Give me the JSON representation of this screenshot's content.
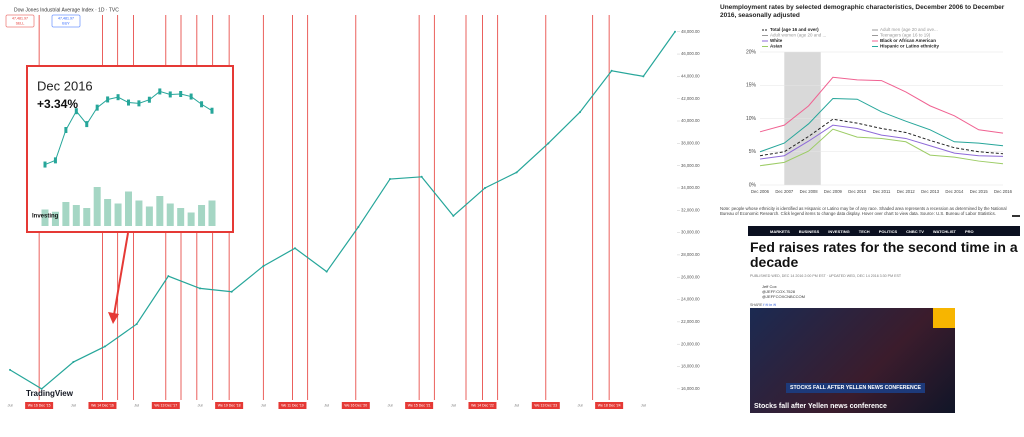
{
  "chart_data": [
    {
      "type": "line",
      "title": "Dow Jones Industrial Average Index · 1D · TVC",
      "sell_price": "47,481.97",
      "sell_label": "SELL",
      "buy_price": "47,481.97",
      "buy_label": "BUY",
      "brand": "TradingView",
      "categories": [
        "Jul",
        null,
        "Jul",
        null,
        "Jul",
        null,
        "Jul",
        null,
        "Jul",
        null,
        "Jul",
        null,
        "Jul",
        null,
        "Jul",
        null,
        "Jul",
        null,
        "Jul",
        null,
        "Jul",
        null
      ],
      "values": [
        17700,
        16000,
        18400,
        19800,
        21800,
        26100,
        25000,
        24700,
        27000,
        28600,
        26500,
        30500,
        34800,
        35000,
        31500,
        34000,
        35400,
        38000,
        40800,
        44500,
        44000,
        48000
      ],
      "color": "#26a69a",
      "ylim": [
        15000,
        49500
      ],
      "yticks": [
        {
          "value": 16000,
          "label": "16,000.00"
        },
        {
          "value": 18000,
          "label": "18,000.00"
        },
        {
          "value": 20000,
          "label": "20,000.00"
        },
        {
          "value": 22000,
          "label": "22,000.00"
        },
        {
          "value": 24000,
          "label": "24,000.00"
        },
        {
          "value": 26000,
          "label": "26,000.00"
        },
        {
          "value": 28000,
          "label": "28,000.00"
        },
        {
          "value": 30000,
          "label": "30,000.00"
        },
        {
          "value": 32000,
          "label": "32,000.00"
        },
        {
          "value": 34000,
          "label": "34,000.00"
        },
        {
          "value": 36000,
          "label": "36,000.00"
        },
        {
          "value": 38000,
          "label": "38,000.00"
        },
        {
          "value": 40000,
          "label": "40,000.00"
        },
        {
          "value": 42000,
          "label": "42,000.00"
        },
        {
          "value": 44000,
          "label": "44,000.00"
        },
        {
          "value": 46000,
          "label": "46,000.00"
        },
        {
          "value": 48000,
          "label": "48,000.00"
        }
      ],
      "event_color": "#e53935",
      "events": [
        {
          "at": 0.92,
          "label": "We 16 Dec '15"
        },
        {
          "at": 2.92,
          "label": "We 14 Dec '16"
        },
        {
          "at": 3.4,
          "label": null
        },
        {
          "at": 3.9,
          "label": null
        },
        {
          "at": 4.92,
          "label": "We 13 Dec '17"
        },
        {
          "at": 5.4,
          "label": null
        },
        {
          "at": 5.9,
          "label": null
        },
        {
          "at": 6.4,
          "label": null
        },
        {
          "at": 6.92,
          "label": "We 19 Dec '18"
        },
        {
          "at": 8.0,
          "label": null
        },
        {
          "at": 8.92,
          "label": "We 11 Dec '19"
        },
        {
          "at": 9.4,
          "label": null
        },
        {
          "at": 10.92,
          "label": "We 16 Dec '20"
        },
        {
          "at": 12.92,
          "label": "We 15 Dec '21"
        },
        {
          "at": 13.4,
          "label": null
        },
        {
          "at": 14.4,
          "label": null
        },
        {
          "at": 14.92,
          "label": "We 14 Dec '22"
        },
        {
          "at": 15.4,
          "label": null
        },
        {
          "at": 16.92,
          "label": "We 13 Dec '23"
        },
        {
          "at": 18.4,
          "label": null
        },
        {
          "at": 18.92,
          "label": "We 18 Dec '24"
        }
      ]
    },
    {
      "type": "line",
      "title": "Dec 2016",
      "subtitle": "+3.34%",
      "brand": "Investing",
      "values": [
        19170,
        19216,
        19550,
        19757,
        19615,
        19796,
        19886,
        19911,
        19852,
        19843,
        19883,
        19974,
        19941,
        19946,
        19918,
        19833,
        19762
      ],
      "volume": [
        110,
        95,
        160,
        140,
        120,
        260,
        180,
        150,
        230,
        170,
        130,
        200,
        150,
        120,
        90,
        140,
        170
      ],
      "color": "#26a69a",
      "volume_color": "#a5d6c4",
      "ylim": [
        19000,
        20100
      ],
      "volume_lim": [
        0,
        400
      ]
    },
    {
      "type": "line",
      "title": "Unemployment rates by selected demographic characteristics, December 2006 to December 2016, seasonally adjusted",
      "categories": [
        "Dec 2006",
        "Dec 2007",
        "Dec 2008",
        "Dec 2009",
        "Dec 2010",
        "Dec 2011",
        "Dec 2012",
        "Dec 2013",
        "Dec 2014",
        "Dec 2015",
        "Dec 2016"
      ],
      "ylim": [
        0,
        20
      ],
      "yticks": [
        {
          "value": 0,
          "label": "0%"
        },
        {
          "value": 5,
          "label": "5%"
        },
        {
          "value": 10,
          "label": "10%"
        },
        {
          "value": 15,
          "label": "15%"
        },
        {
          "value": 20,
          "label": "20%"
        }
      ],
      "grid": true,
      "recession": [
        1,
        2.5
      ],
      "series": [
        {
          "name": "Total (age 16 and over)",
          "color": "#222222",
          "dashed": true,
          "values": [
            4.4,
            5.0,
            7.3,
            9.9,
            9.3,
            8.5,
            7.9,
            6.7,
            5.6,
            5.0,
            4.7
          ]
        },
        {
          "name": "Adult men (age 20 and ove...",
          "color": "#999999",
          "hidden": true,
          "values": [
            null,
            null,
            null,
            null,
            null,
            null,
            null,
            null,
            null,
            null,
            null
          ]
        },
        {
          "name": "Adult women (age 20 and ...",
          "color": "#999999",
          "hidden": true,
          "values": [
            null,
            null,
            null,
            null,
            null,
            null,
            null,
            null,
            null,
            null,
            null
          ]
        },
        {
          "name": "Teenagers (age 16 to 19)",
          "color": "#999999",
          "hidden": true,
          "values": [
            null,
            null,
            null,
            null,
            null,
            null,
            null,
            null,
            null,
            null,
            null
          ]
        },
        {
          "name": "White",
          "color": "#8e6ad8",
          "values": [
            3.9,
            4.4,
            6.6,
            9.0,
            8.5,
            7.5,
            7.0,
            5.9,
            4.8,
            4.4,
            4.3
          ]
        },
        {
          "name": "Black or African American",
          "color": "#f06292",
          "values": [
            8.0,
            9.0,
            11.9,
            16.2,
            15.8,
            15.7,
            14.0,
            11.9,
            10.4,
            8.3,
            7.8
          ]
        },
        {
          "name": "Asian",
          "color": "#9ccc65",
          "values": [
            2.9,
            3.4,
            5.1,
            8.4,
            7.2,
            7.0,
            6.5,
            4.5,
            4.2,
            3.6,
            3.2
          ]
        },
        {
          "name": "Hispanic or Latino ethnicity",
          "color": "#26a69a",
          "values": [
            5.0,
            6.3,
            9.2,
            13.0,
            12.9,
            11.0,
            9.6,
            8.3,
            6.5,
            6.3,
            5.9
          ]
        }
      ],
      "note": "Note: people whose ethnicity is identified as Hispanic or Latino may be of any race. Shaded area represents a recession as determined by the National Bureau of Economic Research. Click legend items to change data display. Hover over chart to view data. Source: U.S. Bureau of Labor Statistics."
    }
  ],
  "article": {
    "nav": [
      "MARKETS",
      "BUSINESS",
      "INVESTING",
      "TECH",
      "POLITICS",
      "CNBC TV",
      "WATCHLIST",
      "PRO"
    ],
    "headline": "Fed raises rates for the second time in a decade",
    "meta": "PUBLISHED WED, DEC 14 2016 2:00 PM EST · UPDATED WED, DEC 14 2016 3:30 PM EST",
    "author": "Jeff Cox",
    "handles": [
      "@JEFF.COX.7528",
      "@JEFFCOXCNBCCOM"
    ],
    "share": "SHARE",
    "video_banner": "STOCKS FALL AFTER YELLEN NEWS CONFERENCE",
    "video_caption": "Stocks fall after Yellen news conference"
  }
}
